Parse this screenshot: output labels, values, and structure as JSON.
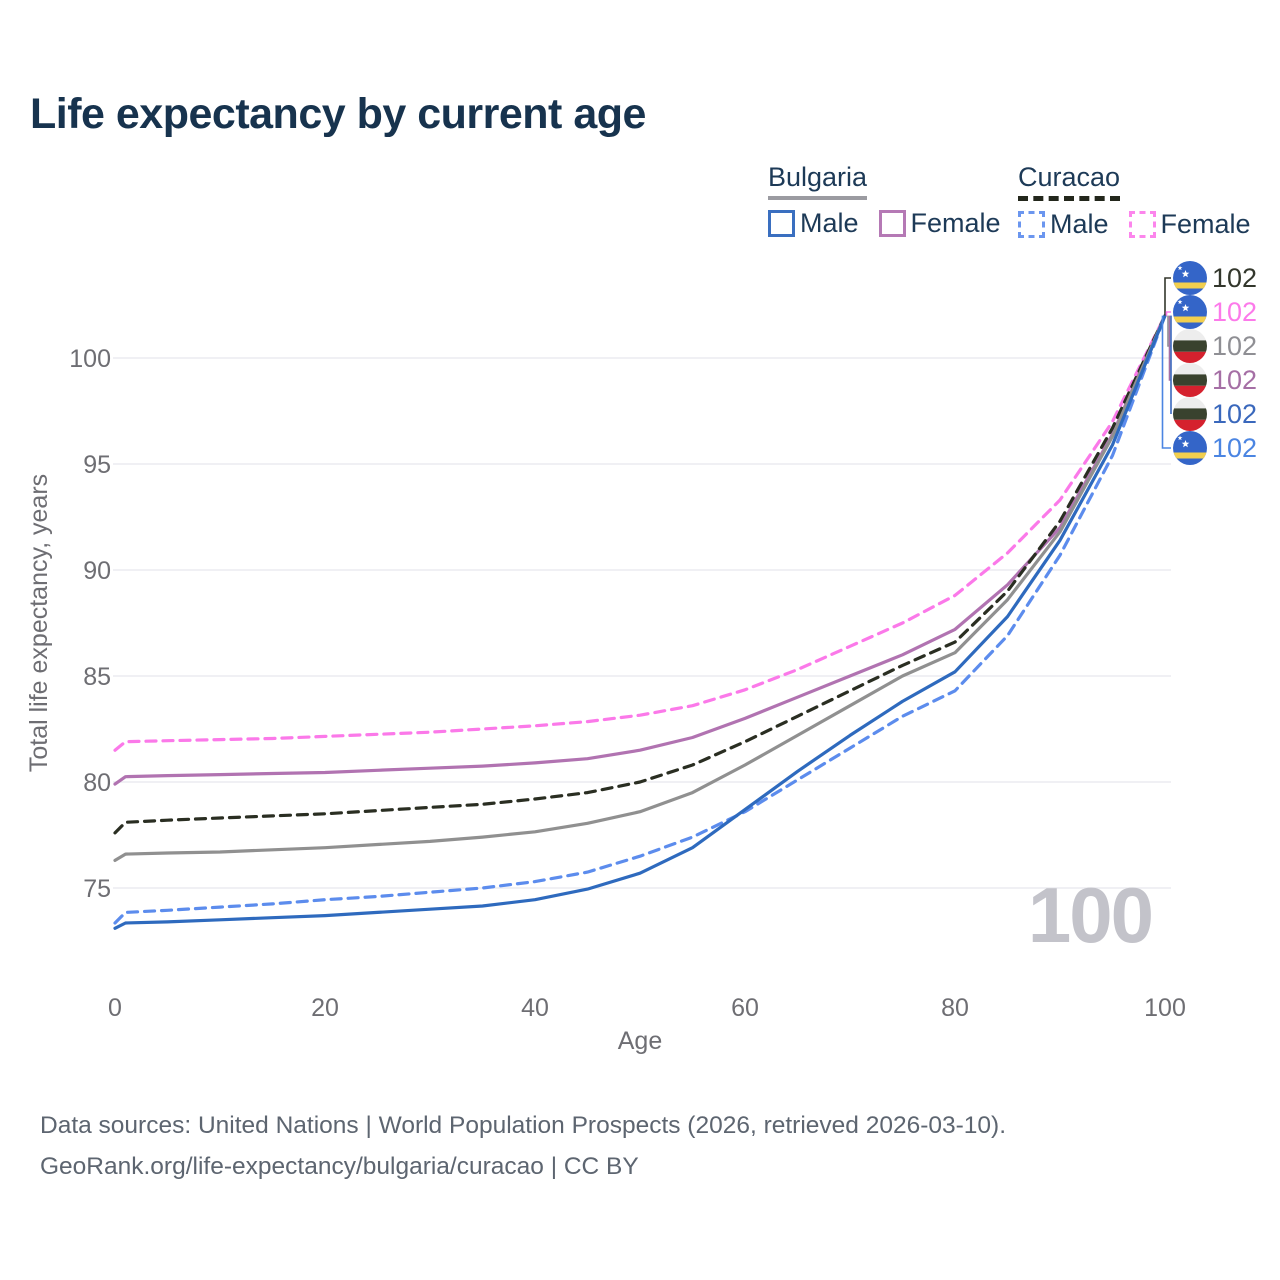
{
  "header": {
    "title": "Life expectancy by current age"
  },
  "legend": {
    "groups": [
      {
        "name": "Bulgaria",
        "line_style": "solid",
        "items": [
          {
            "label": "Male",
            "color": "#3a6fc0",
            "dashed": false
          },
          {
            "label": "Female",
            "color": "#b579b5",
            "dashed": false
          }
        ]
      },
      {
        "name": "Curacao",
        "line_style": "dashed",
        "items": [
          {
            "label": "Male",
            "color": "#6b96ef",
            "dashed": true
          },
          {
            "label": "Female",
            "color": "#fc85ec",
            "dashed": true
          }
        ]
      }
    ]
  },
  "chart_data": {
    "type": "line",
    "title": "Life expectancy by current age",
    "xlabel": "Age",
    "ylabel": "Total life expectancy, years",
    "x_ticks": [
      0,
      20,
      40,
      60,
      80,
      100
    ],
    "y_ticks": [
      75,
      80,
      85,
      90,
      95,
      100
    ],
    "xlim": [
      0,
      100
    ],
    "ylim": [
      73,
      103
    ],
    "grid": "horizontal",
    "legend_position": "top-right",
    "ages": [
      0,
      1,
      5,
      10,
      15,
      20,
      25,
      30,
      35,
      40,
      45,
      50,
      55,
      60,
      65,
      70,
      75,
      80,
      85,
      90,
      95,
      100
    ],
    "series": [
      {
        "name": "Curacao Female",
        "country": "Curacao",
        "sex": "Female",
        "color": "#fb79e9",
        "dashed": true,
        "values": [
          81.5,
          81.9,
          81.95,
          82.0,
          82.05,
          82.15,
          82.25,
          82.35,
          82.5,
          82.65,
          82.85,
          83.15,
          83.6,
          84.35,
          85.3,
          86.4,
          87.5,
          88.8,
          90.8,
          93.3,
          97.0,
          102
        ],
        "end_label": "102"
      },
      {
        "name": "Bulgaria Female",
        "country": "Bulgaria",
        "sex": "Female",
        "color": "#b173b1",
        "dashed": false,
        "values": [
          79.9,
          80.25,
          80.3,
          80.35,
          80.4,
          80.45,
          80.55,
          80.65,
          80.75,
          80.9,
          81.1,
          81.5,
          82.1,
          83.0,
          84.0,
          85.0,
          86.0,
          87.2,
          89.3,
          92.0,
          96.4,
          102
        ],
        "end_label": "102"
      },
      {
        "name": "Curacao",
        "country": "Curacao",
        "sex": "Both",
        "color": "#2a2e22",
        "dashed": true,
        "values": [
          77.6,
          78.1,
          78.2,
          78.3,
          78.4,
          78.5,
          78.65,
          78.8,
          78.95,
          79.2,
          79.5,
          80.0,
          80.8,
          81.9,
          83.1,
          84.3,
          85.5,
          86.6,
          89.0,
          92.3,
          96.7,
          102
        ],
        "end_label": "102"
      },
      {
        "name": "Bulgaria",
        "country": "Bulgaria",
        "sex": "Both",
        "color": "#909090",
        "dashed": false,
        "values": [
          76.3,
          76.6,
          76.65,
          76.7,
          76.8,
          76.9,
          77.05,
          77.2,
          77.4,
          77.65,
          78.05,
          78.6,
          79.5,
          80.8,
          82.2,
          83.6,
          85.0,
          86.1,
          88.6,
          91.8,
          96.3,
          102
        ],
        "end_label": "102"
      },
      {
        "name": "Curacao Male",
        "country": "Curacao",
        "sex": "Male",
        "color": "#5c8ced",
        "dashed": true,
        "values": [
          73.35,
          73.85,
          73.95,
          74.1,
          74.25,
          74.45,
          74.6,
          74.8,
          75.0,
          75.3,
          75.75,
          76.5,
          77.4,
          78.6,
          80.1,
          81.6,
          83.1,
          84.3,
          86.9,
          90.7,
          95.4,
          102
        ],
        "end_label": "102"
      },
      {
        "name": "Bulgaria Male",
        "country": "Bulgaria",
        "sex": "Male",
        "color": "#2e6abe",
        "dashed": false,
        "values": [
          73.1,
          73.35,
          73.4,
          73.5,
          73.6,
          73.7,
          73.85,
          74.0,
          74.15,
          74.45,
          74.95,
          75.7,
          76.9,
          78.7,
          80.5,
          82.2,
          83.8,
          85.2,
          87.8,
          91.4,
          95.9,
          102
        ],
        "end_label": "102"
      }
    ]
  },
  "right_labels": {
    "rows": [
      {
        "flag": "curacao",
        "value": "102",
        "color": "#33372c"
      },
      {
        "flag": "curacao",
        "value": "102",
        "color": "#fc7aea"
      },
      {
        "flag": "bulgaria",
        "value": "102",
        "color": "#8f8f94"
      },
      {
        "flag": "bulgaria",
        "value": "102",
        "color": "#a56fa5"
      },
      {
        "flag": "bulgaria",
        "value": "102",
        "color": "#3a68bc"
      },
      {
        "flag": "curacao",
        "value": "102",
        "color": "#4b85e2"
      }
    ]
  },
  "watermark": "100",
  "footer": {
    "line1": "Data sources: United Nations | World Population Prospects (2026, retrieved 2026-03-10).",
    "line2": "GeoRank.org/life-expectancy/bulgaria/curacao | CC BY"
  }
}
